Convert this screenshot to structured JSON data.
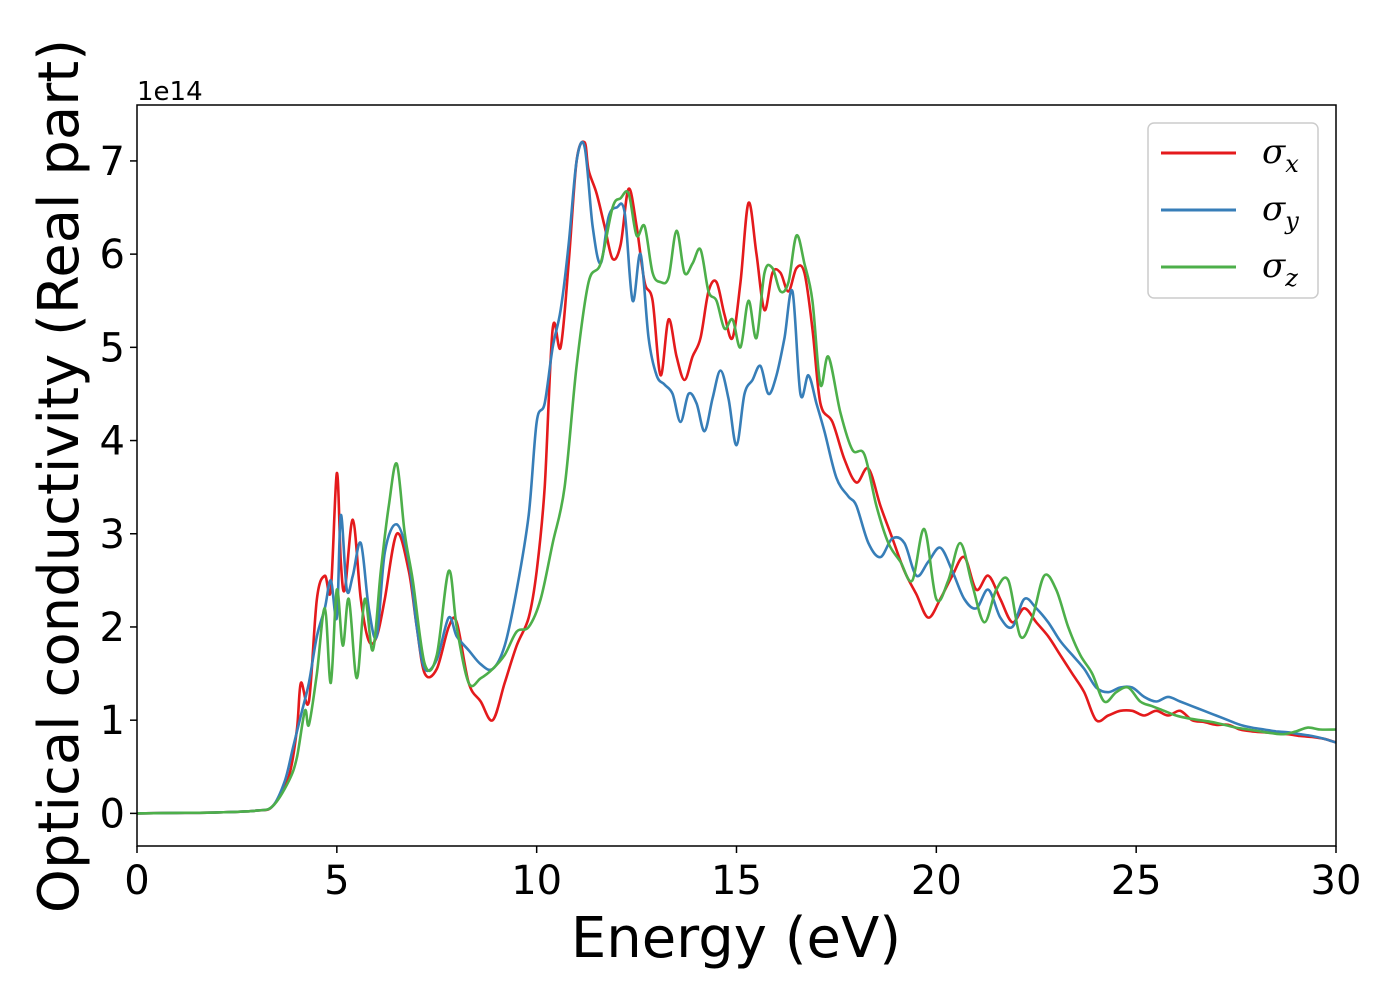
{
  "chart_data": {
    "type": "line",
    "xlabel": "Energy (eV)",
    "ylabel": "Optical conductivity (Real part)",
    "y_offset_label": "1e14",
    "xlim": [
      0,
      30
    ],
    "ylim": [
      -0.35,
      7.6
    ],
    "x_ticks": [
      0,
      5,
      10,
      15,
      20,
      25,
      30
    ],
    "y_ticks": [
      0,
      1,
      2,
      3,
      4,
      5,
      6,
      7
    ],
    "grid": false,
    "legend_position": "top-right",
    "series": [
      {
        "name": "σx",
        "legend_main": "σ",
        "legend_sub": "x",
        "color": "#e41a1c",
        "x": [
          0,
          1,
          2,
          3,
          3.4,
          3.8,
          4.0,
          4.1,
          4.3,
          4.5,
          4.7,
          4.85,
          5.0,
          5.1,
          5.2,
          5.4,
          5.6,
          5.8,
          6.0,
          6.2,
          6.5,
          6.8,
          7.0,
          7.2,
          7.5,
          7.8,
          8.0,
          8.3,
          8.6,
          8.9,
          9.2,
          9.5,
          9.8,
          10.0,
          10.2,
          10.4,
          10.6,
          10.8,
          11.0,
          11.2,
          11.3,
          11.5,
          11.7,
          11.9,
          12.1,
          12.3,
          12.5,
          12.7,
          12.9,
          13.1,
          13.3,
          13.5,
          13.7,
          13.9,
          14.1,
          14.3,
          14.5,
          14.7,
          14.9,
          15.1,
          15.3,
          15.5,
          15.7,
          15.9,
          16.1,
          16.3,
          16.5,
          16.7,
          16.9,
          17.1,
          17.4,
          17.7,
          18.0,
          18.3,
          18.6,
          18.9,
          19.2,
          19.5,
          19.8,
          20.1,
          20.4,
          20.7,
          21.0,
          21.3,
          21.6,
          21.9,
          22.2,
          22.5,
          22.8,
          23.1,
          23.4,
          23.7,
          24.0,
          24.3,
          24.6,
          24.9,
          25.2,
          25.5,
          25.8,
          26.1,
          26.4,
          26.7,
          27.0,
          27.3,
          27.6,
          27.9,
          28.2,
          28.5,
          28.8,
          29.1,
          29.4,
          29.7,
          30.0
        ],
        "values": [
          0.0,
          0.005,
          0.01,
          0.03,
          0.08,
          0.4,
          0.9,
          1.4,
          1.2,
          2.3,
          2.55,
          2.4,
          3.65,
          2.7,
          2.4,
          3.15,
          2.3,
          1.85,
          1.9,
          2.3,
          3.0,
          2.6,
          2.0,
          1.5,
          1.55,
          2.0,
          2.05,
          1.4,
          1.2,
          1.0,
          1.4,
          1.8,
          2.1,
          2.6,
          3.5,
          5.2,
          5.0,
          5.9,
          7.0,
          7.2,
          6.9,
          6.65,
          6.3,
          5.95,
          6.1,
          6.7,
          6.3,
          5.7,
          5.5,
          4.7,
          5.3,
          4.9,
          4.65,
          4.9,
          5.1,
          5.6,
          5.7,
          5.35,
          5.1,
          5.7,
          6.55,
          6.0,
          5.4,
          5.8,
          5.8,
          5.6,
          5.85,
          5.8,
          5.2,
          4.4,
          4.2,
          3.8,
          3.55,
          3.7,
          3.3,
          2.95,
          2.6,
          2.35,
          2.1,
          2.3,
          2.55,
          2.75,
          2.4,
          2.55,
          2.3,
          2.05,
          2.2,
          2.05,
          1.9,
          1.7,
          1.5,
          1.3,
          1.0,
          1.05,
          1.1,
          1.1,
          1.05,
          1.1,
          1.05,
          1.1,
          1.0,
          0.98,
          0.95,
          0.95,
          0.9,
          0.88,
          0.87,
          0.86,
          0.85,
          0.83,
          0.82,
          0.8,
          0.76
        ]
      },
      {
        "name": "σy",
        "legend_main": "σ",
        "legend_sub": "y",
        "color": "#377eb8",
        "x": [
          0,
          1,
          2,
          3,
          3.4,
          3.7,
          3.9,
          4.1,
          4.3,
          4.5,
          4.7,
          4.85,
          5.0,
          5.1,
          5.25,
          5.4,
          5.6,
          5.8,
          6.0,
          6.2,
          6.5,
          6.8,
          7.0,
          7.2,
          7.5,
          7.8,
          8.0,
          8.3,
          8.6,
          8.9,
          9.2,
          9.5,
          9.8,
          10.0,
          10.2,
          10.4,
          10.6,
          10.8,
          11.0,
          11.2,
          11.4,
          11.6,
          11.8,
          12.0,
          12.2,
          12.4,
          12.6,
          12.8,
          13.0,
          13.2,
          13.4,
          13.6,
          13.8,
          14.0,
          14.2,
          14.4,
          14.6,
          14.8,
          15.0,
          15.2,
          15.4,
          15.6,
          15.8,
          16.0,
          16.2,
          16.4,
          16.6,
          16.8,
          17.0,
          17.2,
          17.5,
          17.8,
          18.0,
          18.3,
          18.6,
          18.9,
          19.2,
          19.5,
          19.8,
          20.1,
          20.4,
          20.7,
          21.0,
          21.3,
          21.6,
          21.9,
          22.2,
          22.5,
          22.8,
          23.1,
          23.4,
          23.7,
          24.0,
          24.3,
          24.6,
          24.9,
          25.2,
          25.5,
          25.8,
          26.1,
          26.4,
          26.7,
          27.0,
          27.3,
          27.6,
          27.9,
          28.2,
          28.5,
          28.8,
          29.1,
          29.4,
          29.7,
          30.0
        ],
        "values": [
          0.0,
          0.005,
          0.01,
          0.03,
          0.08,
          0.35,
          0.7,
          1.05,
          1.4,
          1.9,
          2.2,
          2.5,
          2.1,
          3.2,
          2.4,
          2.55,
          2.9,
          2.2,
          1.9,
          2.8,
          3.1,
          2.7,
          2.0,
          1.55,
          1.65,
          2.1,
          1.9,
          1.75,
          1.6,
          1.55,
          1.8,
          2.4,
          3.2,
          4.2,
          4.4,
          5.0,
          5.4,
          6.1,
          7.0,
          7.15,
          6.3,
          5.9,
          6.4,
          6.5,
          6.45,
          5.5,
          6.0,
          5.1,
          4.7,
          4.6,
          4.5,
          4.2,
          4.5,
          4.4,
          4.1,
          4.45,
          4.75,
          4.45,
          3.95,
          4.5,
          4.65,
          4.8,
          4.5,
          4.7,
          5.1,
          5.6,
          4.5,
          4.7,
          4.4,
          4.1,
          3.6,
          3.4,
          3.3,
          2.9,
          2.75,
          2.95,
          2.9,
          2.55,
          2.7,
          2.85,
          2.6,
          2.3,
          2.2,
          2.4,
          2.1,
          2.0,
          2.3,
          2.2,
          2.05,
          1.85,
          1.7,
          1.55,
          1.35,
          1.3,
          1.35,
          1.35,
          1.25,
          1.2,
          1.25,
          1.2,
          1.15,
          1.1,
          1.05,
          1.0,
          0.95,
          0.92,
          0.9,
          0.88,
          0.87,
          0.85,
          0.83,
          0.8,
          0.76
        ]
      },
      {
        "name": "σz",
        "legend_main": "σ",
        "legend_sub": "z",
        "color": "#4daf4a",
        "x": [
          0,
          1,
          2,
          3,
          3.4,
          3.8,
          4.0,
          4.2,
          4.3,
          4.5,
          4.7,
          4.85,
          5.0,
          5.15,
          5.3,
          5.5,
          5.7,
          5.9,
          6.1,
          6.3,
          6.5,
          6.7,
          6.9,
          7.2,
          7.5,
          7.8,
          8.0,
          8.3,
          8.6,
          8.9,
          9.2,
          9.5,
          9.8,
          10.1,
          10.4,
          10.7,
          11.0,
          11.3,
          11.6,
          11.9,
          12.1,
          12.3,
          12.5,
          12.7,
          12.9,
          13.1,
          13.3,
          13.5,
          13.7,
          13.9,
          14.1,
          14.3,
          14.5,
          14.7,
          14.9,
          15.1,
          15.3,
          15.5,
          15.7,
          15.9,
          16.1,
          16.3,
          16.5,
          16.7,
          16.9,
          17.1,
          17.3,
          17.6,
          17.9,
          18.2,
          18.5,
          18.8,
          19.1,
          19.4,
          19.7,
          20.0,
          20.3,
          20.6,
          20.9,
          21.2,
          21.5,
          21.8,
          22.1,
          22.4,
          22.7,
          23.0,
          23.3,
          23.6,
          23.9,
          24.2,
          24.5,
          24.8,
          25.1,
          25.4,
          25.7,
          26.0,
          26.3,
          26.6,
          26.9,
          27.2,
          27.5,
          27.8,
          28.1,
          28.4,
          28.7,
          29.0,
          29.3,
          29.6,
          30.0
        ],
        "values": [
          0.0,
          0.005,
          0.01,
          0.03,
          0.08,
          0.35,
          0.6,
          1.1,
          0.95,
          1.5,
          2.2,
          1.4,
          2.4,
          1.8,
          2.3,
          1.45,
          2.3,
          1.75,
          2.6,
          3.3,
          3.75,
          3.0,
          2.5,
          1.6,
          1.7,
          2.6,
          2.0,
          1.4,
          1.45,
          1.55,
          1.7,
          1.95,
          2.0,
          2.3,
          2.9,
          3.5,
          4.8,
          5.7,
          5.9,
          6.5,
          6.6,
          6.65,
          6.2,
          6.3,
          5.8,
          5.7,
          5.75,
          6.25,
          5.8,
          5.9,
          6.05,
          5.6,
          5.5,
          5.2,
          5.3,
          5.0,
          5.5,
          5.1,
          5.8,
          5.85,
          5.6,
          5.7,
          6.2,
          5.9,
          5.5,
          4.6,
          4.9,
          4.3,
          3.9,
          3.85,
          3.3,
          2.9,
          2.7,
          2.5,
          3.05,
          2.3,
          2.5,
          2.9,
          2.45,
          2.05,
          2.4,
          2.5,
          1.9,
          2.1,
          2.55,
          2.4,
          2.0,
          1.7,
          1.5,
          1.2,
          1.3,
          1.35,
          1.2,
          1.15,
          1.1,
          1.05,
          1.02,
          1.0,
          0.98,
          0.95,
          0.92,
          0.9,
          0.88,
          0.86,
          0.85,
          0.88,
          0.92,
          0.9,
          0.9
        ]
      }
    ]
  }
}
